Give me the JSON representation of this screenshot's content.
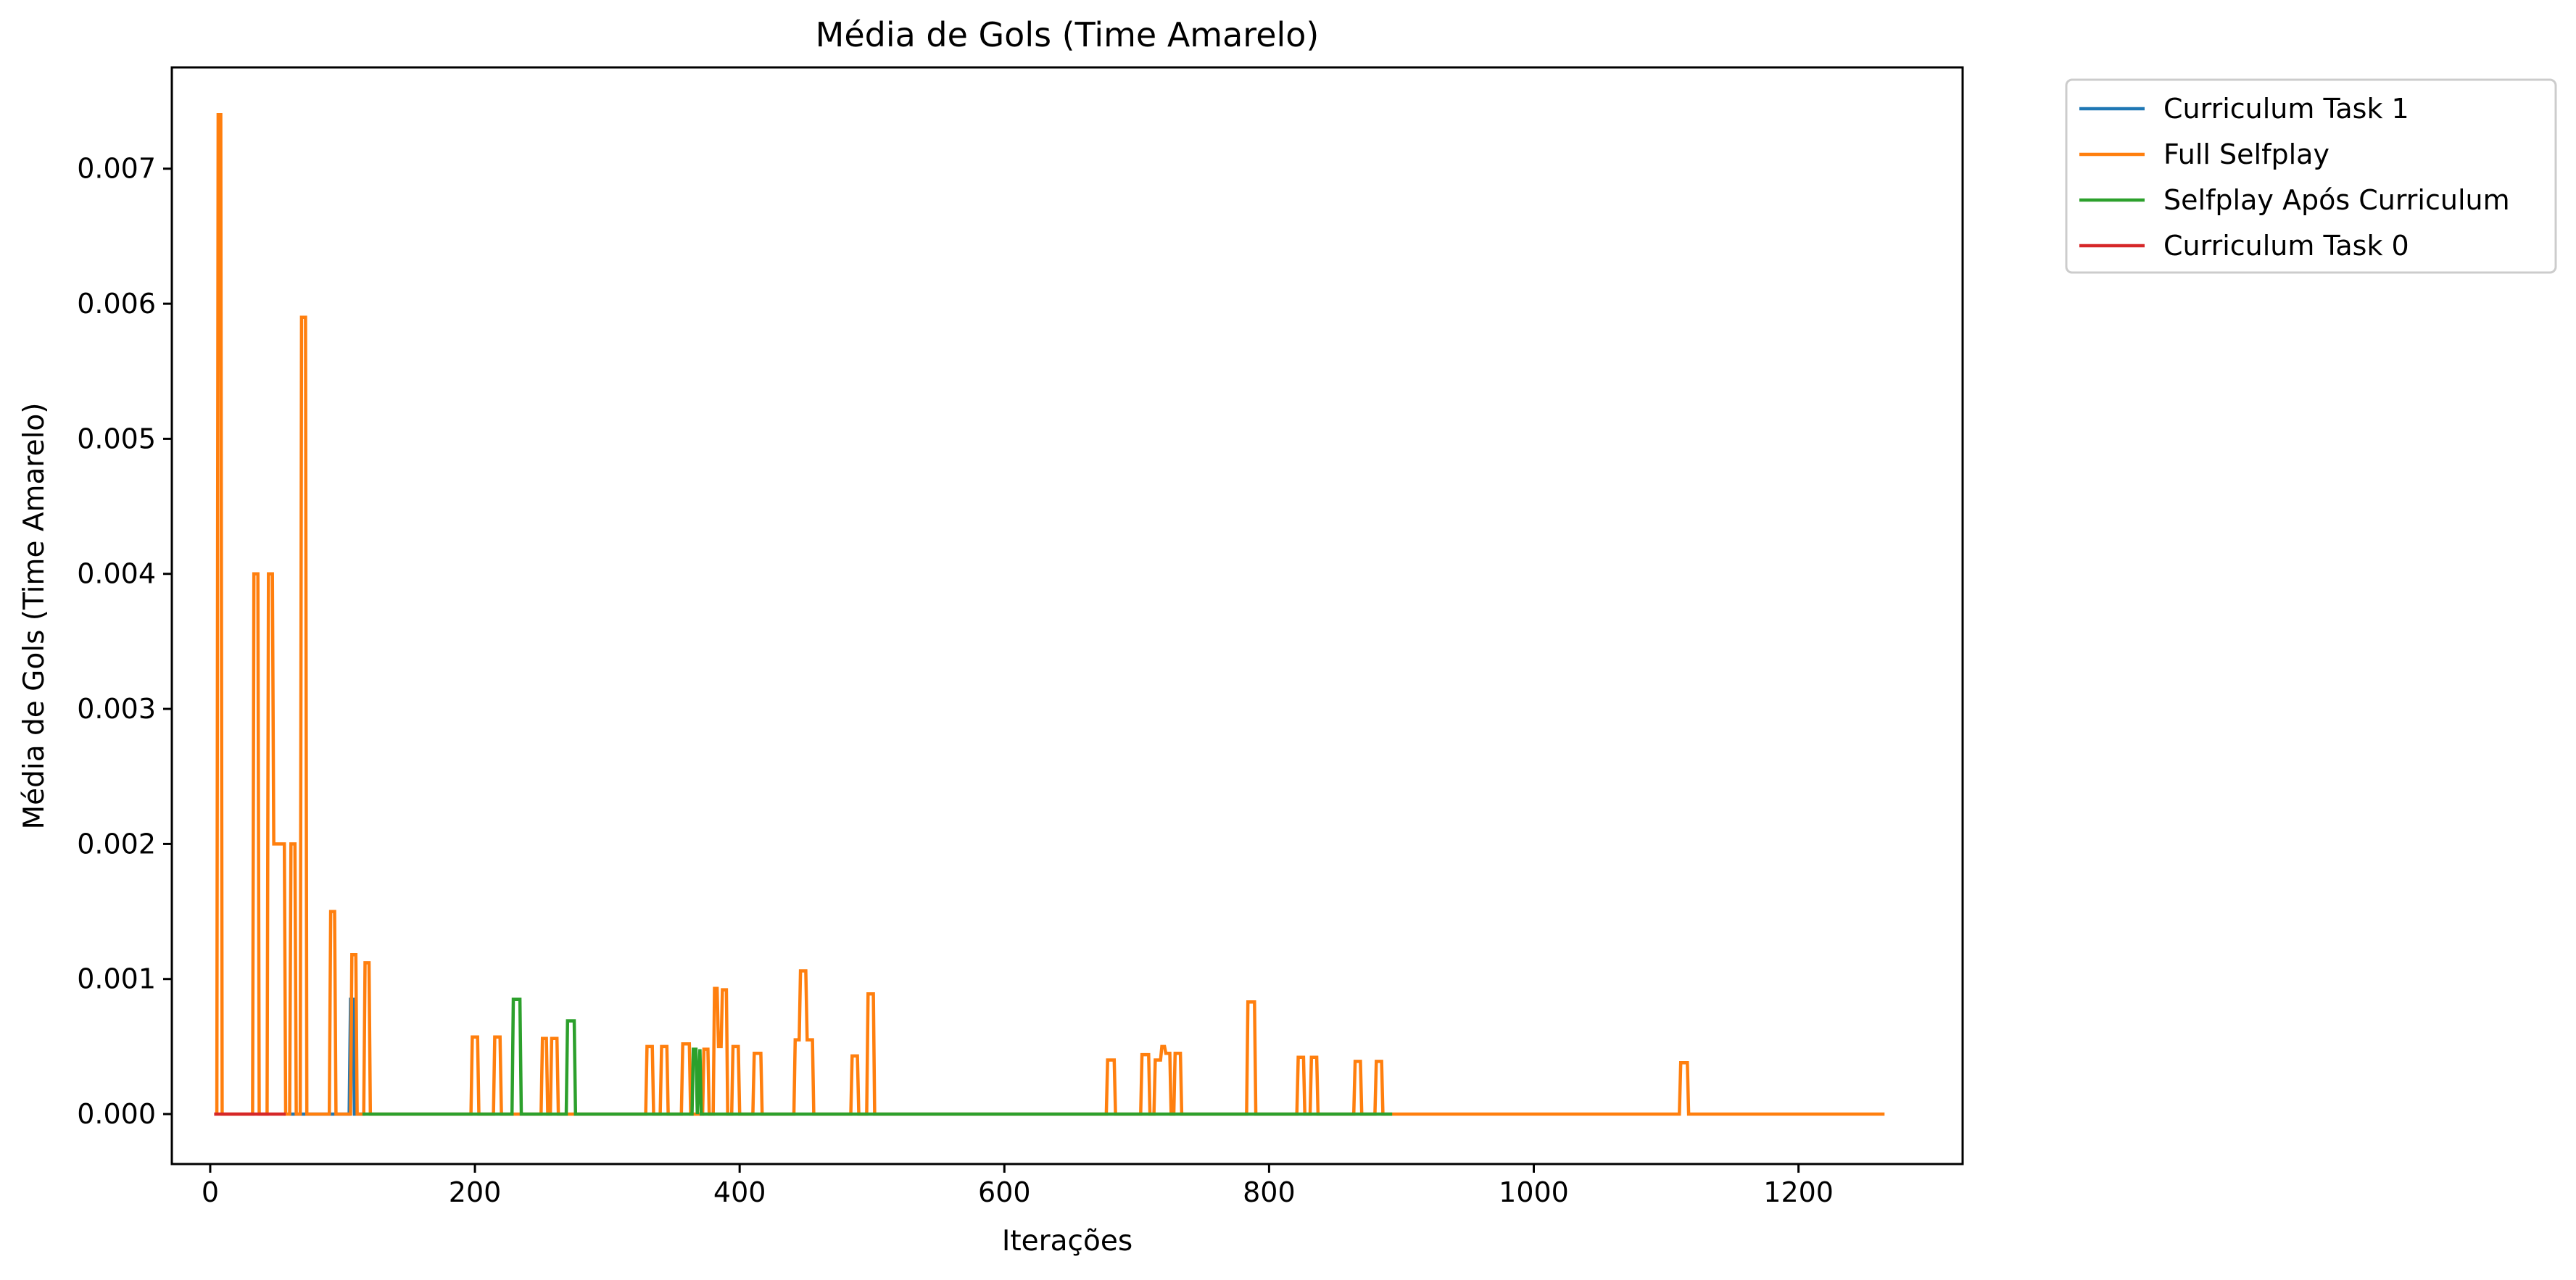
{
  "chart_data": {
    "type": "line",
    "title": "Média de Gols (Time Amarelo)",
    "xlabel": "Iterações",
    "ylabel": "Média de Gols (Time Amarelo)",
    "xlim": [
      -29,
      1324
    ],
    "ylim": [
      -0.00037,
      0.00775
    ],
    "xticks": [
      0,
      200,
      400,
      600,
      800,
      1000,
      1200
    ],
    "xtick_labels": [
      "0",
      "200",
      "400",
      "600",
      "800",
      "1000",
      "1200"
    ],
    "yticks": [
      0,
      0.001,
      0.002,
      0.003,
      0.004,
      0.005,
      0.006,
      0.007
    ],
    "ytick_labels": [
      "0.000",
      "0.001",
      "0.002",
      "0.003",
      "0.004",
      "0.005",
      "0.006",
      "0.007"
    ],
    "grid": false,
    "legend_position": "outside-top-right",
    "series": [
      {
        "name": "Curriculum Task 1",
        "color": "#1f77b4",
        "x": [
          60,
          105,
          106,
          108,
          109,
          115
        ],
        "y": [
          0,
          0,
          0.00085,
          0.00085,
          0,
          0
        ]
      },
      {
        "name": "Full Selfplay",
        "color": "#ff7f0e",
        "x": [
          5,
          6,
          8,
          9,
          32,
          33,
          36,
          37,
          43,
          44,
          47,
          48,
          56,
          57,
          60,
          61,
          64,
          65,
          68,
          69,
          72,
          73,
          90,
          91,
          94,
          95,
          106,
          107,
          110,
          111,
          116,
          117,
          120,
          121,
          197,
          198,
          202,
          203,
          214,
          215,
          219,
          220,
          250,
          251,
          254,
          255,
          257,
          258,
          262,
          263,
          329,
          330,
          334,
          335,
          340,
          341,
          345,
          346,
          356,
          357,
          362,
          363,
          372,
          373,
          376,
          377,
          380,
          381,
          383,
          384,
          386,
          387,
          390,
          391,
          394,
          395,
          399,
          400,
          410,
          411,
          416,
          417,
          441,
          442,
          445,
          446,
          450,
          451,
          455,
          456,
          484,
          485,
          489,
          490,
          496,
          497,
          501,
          502,
          677,
          678,
          683,
          684,
          703,
          704,
          709,
          710,
          713,
          714,
          718,
          719,
          721,
          722,
          725,
          726,
          728,
          729,
          733,
          734,
          783,
          784,
          789,
          790,
          821,
          822,
          826,
          827,
          831,
          832,
          836,
          837,
          864,
          865,
          869,
          870,
          880,
          881,
          885,
          886,
          1110,
          1111,
          1116,
          1117,
          1265
        ],
        "y": [
          0,
          0.0074,
          0.0074,
          0,
          0,
          0.004,
          0.004,
          0,
          0,
          0.004,
          0.004,
          0.002,
          0.002,
          0,
          0,
          0.002,
          0.002,
          0,
          0,
          0.0059,
          0.0059,
          0,
          0,
          0.0015,
          0.0015,
          0,
          0,
          0.00118,
          0.00118,
          0,
          0,
          0.00112,
          0.00112,
          0,
          0,
          0.00057,
          0.00057,
          0,
          0,
          0.00057,
          0.00057,
          0,
          0,
          0.00056,
          0.00056,
          0,
          0,
          0.00056,
          0.00056,
          0,
          0,
          0.0005,
          0.0005,
          0,
          0,
          0.0005,
          0.0005,
          0,
          0,
          0.00052,
          0.00052,
          0,
          0,
          0.00048,
          0.00048,
          0,
          0,
          0.00093,
          0.00093,
          0.0005,
          0.0005,
          0.00092,
          0.00092,
          0,
          0,
          0.0005,
          0.0005,
          0,
          0,
          0.00045,
          0.00045,
          0,
          0,
          0.00055,
          0.00055,
          0.00106,
          0.00106,
          0.00055,
          0.00055,
          0,
          0,
          0.00043,
          0.00043,
          0,
          0,
          0.00089,
          0.00089,
          0,
          0,
          0.0004,
          0.0004,
          0,
          0,
          0.00044,
          0.00044,
          0,
          0,
          0.0004,
          0.0004,
          0.0005,
          0.0005,
          0.00045,
          0.00045,
          0,
          0,
          0.00045,
          0.00045,
          0,
          0,
          0.00083,
          0.00083,
          0,
          0,
          0.00042,
          0.00042,
          0,
          0,
          0.00042,
          0.00042,
          0,
          0,
          0.00039,
          0.00039,
          0,
          0,
          0.00039,
          0.00039,
          0,
          0,
          0.00038,
          0.00038,
          0,
          0
        ]
      },
      {
        "name": "Selfplay Após Curriculum",
        "color": "#2ca02c",
        "x": [
          115,
          228,
          229,
          234,
          235,
          269,
          270,
          275,
          276,
          364,
          365,
          367,
          368,
          370,
          371,
          893
        ],
        "y": [
          0,
          0,
          0.00085,
          0.00085,
          0,
          0,
          0.00069,
          0.00069,
          0,
          0,
          0.00048,
          0.00048,
          0,
          0.00048,
          0,
          0
        ]
      },
      {
        "name": "Curriculum Task 0",
        "color": "#d62728",
        "x": [
          3,
          57
        ],
        "y": [
          0,
          0
        ]
      }
    ]
  }
}
